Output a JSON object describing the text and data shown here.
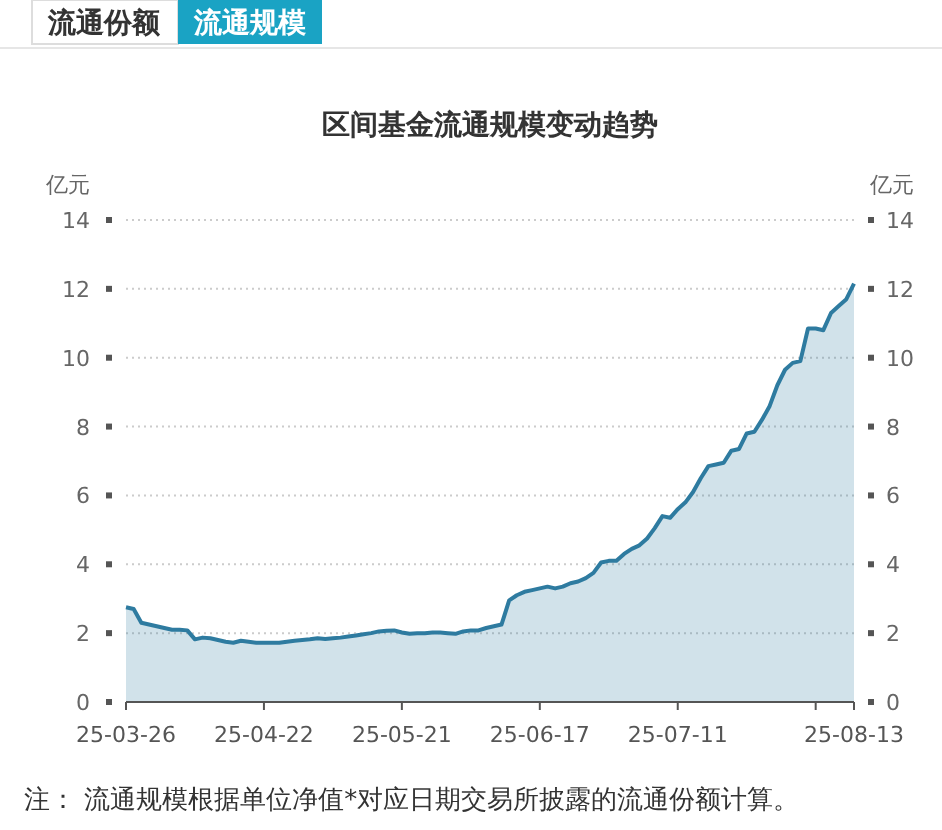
{
  "chart_data": {
    "type": "area",
    "title": "区间基金流通规模变动趋势",
    "ylabel": "亿元",
    "y2label": "亿元",
    "categories": [
      "25-03-26",
      null,
      null,
      null,
      null,
      null,
      null,
      null,
      null,
      null,
      null,
      null,
      null,
      null,
      null,
      null,
      null,
      null,
      "25-04-22",
      null,
      null,
      null,
      null,
      null,
      null,
      null,
      null,
      null,
      null,
      null,
      null,
      null,
      null,
      null,
      null,
      null,
      "25-05-21",
      null,
      null,
      null,
      null,
      null,
      null,
      null,
      null,
      null,
      null,
      null,
      null,
      null,
      null,
      null,
      null,
      null,
      "25-06-17",
      null,
      null,
      null,
      null,
      null,
      null,
      null,
      null,
      null,
      null,
      null,
      null,
      null,
      null,
      null,
      null,
      null,
      "25-07-11",
      null,
      null,
      null,
      null,
      null,
      null,
      null,
      null,
      null,
      null,
      null,
      null,
      null,
      null,
      null,
      null,
      null,
      null,
      null,
      null,
      null,
      null,
      "25-08-13"
    ],
    "series": [
      {
        "color": "#2e7ba0",
        "values": [
          2.75,
          2.7,
          2.3,
          2.25,
          2.2,
          2.15,
          2.1,
          2.1,
          2.08,
          1.82,
          1.87,
          1.85,
          1.8,
          1.75,
          1.72,
          1.78,
          1.75,
          1.72,
          1.72,
          1.72,
          1.72,
          1.75,
          1.78,
          1.8,
          1.82,
          1.85,
          1.83,
          1.85,
          1.87,
          1.9,
          1.93,
          1.97,
          2.0,
          2.05,
          2.07,
          2.08,
          2.02,
          1.98,
          2.0,
          2.0,
          2.02,
          2.02,
          2.0,
          1.98,
          2.05,
          2.08,
          2.08,
          2.15,
          2.2,
          2.25,
          2.95,
          3.1,
          3.2,
          3.25,
          3.3,
          3.35,
          3.3,
          3.35,
          3.45,
          3.5,
          3.6,
          3.75,
          4.05,
          4.1,
          4.1,
          4.3,
          4.45,
          4.55,
          4.75,
          5.05,
          5.4,
          5.35,
          5.6,
          5.8,
          6.1,
          6.5,
          6.85,
          6.9,
          6.95,
          7.3,
          7.35,
          7.8,
          7.85,
          8.2,
          8.6,
          9.2,
          9.65,
          9.85,
          9.9,
          10.85,
          10.85,
          10.8,
          11.3,
          11.5,
          11.7,
          12.15
        ]
      }
    ],
    "ylim": [
      0,
      14
    ],
    "yticks": [
      0,
      2,
      4,
      6,
      8,
      10,
      12,
      14
    ],
    "y2lim": [
      0,
      14
    ],
    "y2ticks": [
      0,
      2,
      4,
      6,
      8,
      10,
      12,
      14
    ],
    "grid": "y",
    "annotations": [
      "流通份额",
      "流通规模",
      "注： 流通规模根据单位净值*对应日期交易所披露的流通份额计算。"
    ]
  }
}
